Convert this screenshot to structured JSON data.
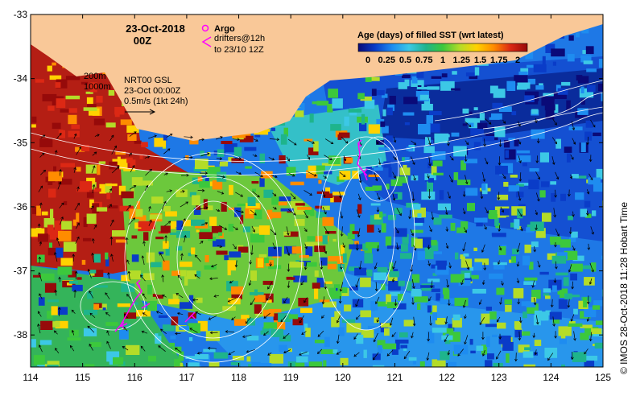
{
  "map": {
    "date_line1": "23-Oct-2018",
    "date_line2": "00Z",
    "argo_label": "Argo",
    "drifters_line1": "drifters@12h",
    "drifters_line2": "to 23/10 12Z",
    "legend_title": "Age (days) of filled SST (wrt latest)",
    "legend_ticks": [
      "0",
      "0.25",
      "0.5",
      "0.75",
      "1",
      "1.25",
      "1.5",
      "1.75",
      "2"
    ],
    "depth_label_200": "200m",
    "depth_label_1000": "1000m",
    "current_source": "NRT00 GSL",
    "current_time": "23-Oct 00:00Z",
    "vector_scale": "0.5m/s (1kt 24h)",
    "credit": "© IMOS 28-Oct-2018 11:28 Hobart Time",
    "lon_ticks": [
      "114",
      "115",
      "116",
      "117",
      "118",
      "119",
      "120",
      "121",
      "122",
      "123",
      "124",
      "125"
    ],
    "lat_ticks": [
      "-33",
      "-34",
      "-35",
      "-36",
      "-37",
      "-38"
    ],
    "lon_range": [
      114,
      125
    ],
    "lat_range": [
      -38.5,
      -33
    ],
    "colors": {
      "land": "#f9c898",
      "contour": "#ffffff",
      "argo": "#ff00ff",
      "drifter": "#ff00ff",
      "scale": [
        "#0a0a78",
        "#0a3cc8",
        "#1e8cf0",
        "#3cc8e6",
        "#1eb48c",
        "#3cc83c",
        "#b4dc28",
        "#ffd200",
        "#ff8c00",
        "#dc2814",
        "#960a0a"
      ]
    }
  }
}
